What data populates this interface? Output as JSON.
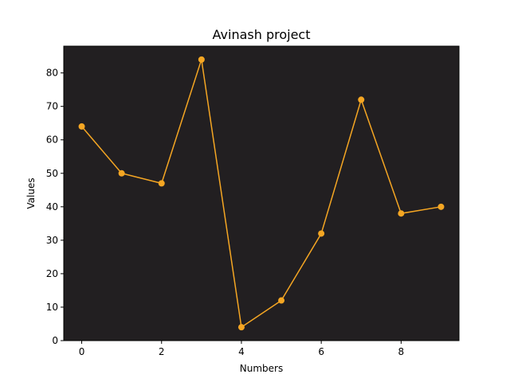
{
  "chart_data": {
    "type": "line",
    "title": "Avinash project",
    "xlabel": "Numbers",
    "ylabel": "Values",
    "x": [
      0,
      1,
      2,
      3,
      4,
      5,
      6,
      7,
      8,
      9
    ],
    "series": [
      {
        "values": [
          64,
          50,
          47,
          84,
          4,
          12,
          32,
          72,
          38,
          40
        ],
        "color": "#f5a623",
        "marker": "circle"
      }
    ],
    "xlim": [
      -0.45,
      9.45
    ],
    "ylim": [
      0,
      88
    ],
    "xticks": [
      0,
      2,
      4,
      6,
      8
    ],
    "yticks": [
      0,
      10,
      20,
      30,
      40,
      50,
      60,
      70,
      80
    ],
    "grid": false,
    "legend": "none",
    "plot_background": "#221f21",
    "figure_background": "#ffffff"
  }
}
